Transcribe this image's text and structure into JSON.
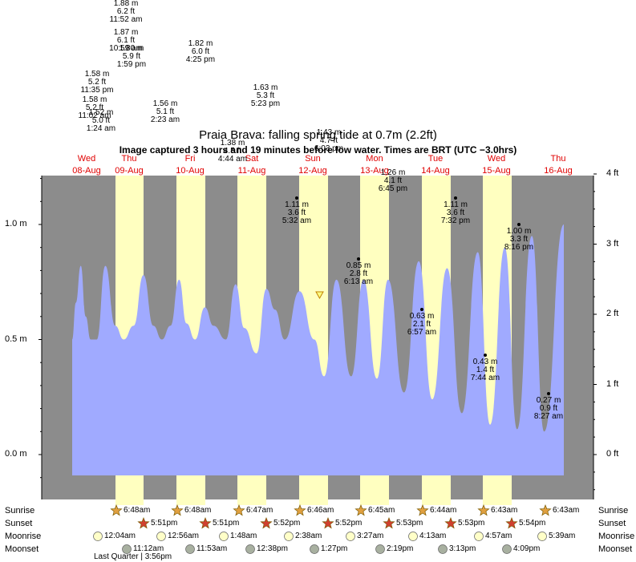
{
  "title": "Praia Brava: falling  spring tide at 0.7m (2.2ft)",
  "subtitle": "Image captured 3 hours and 19 minutes before low water. Times are BRT (UTC −3.0hrs)",
  "days": [
    {
      "dow": "Wed",
      "date": "08-Aug"
    },
    {
      "dow": "Thu",
      "date": "09-Aug"
    },
    {
      "dow": "Fri",
      "date": "10-Aug"
    },
    {
      "dow": "Sat",
      "date": "11-Aug"
    },
    {
      "dow": "Sun",
      "date": "12-Aug"
    },
    {
      "dow": "Mon",
      "date": "13-Aug"
    },
    {
      "dow": "Tue",
      "date": "14-Aug"
    },
    {
      "dow": "Wed",
      "date": "15-Aug"
    },
    {
      "dow": "Thu",
      "date": "16-Aug"
    }
  ],
  "left_ticks": [
    "1.0 m",
    "0.5 m",
    "0.0 m"
  ],
  "right_ticks": [
    "4 ft",
    "3 ft",
    "2 ft",
    "1 ft",
    "0 ft"
  ],
  "row_labels": [
    "Sunrise",
    "Sunset",
    "Moonrise",
    "Moonset"
  ],
  "sunrise": [
    "6:48am",
    "6:48am",
    "6:47am",
    "6:46am",
    "6:45am",
    "6:44am",
    "6:43am",
    "6:43am"
  ],
  "sunset": [
    "5:51pm",
    "5:51pm",
    "5:52pm",
    "5:52pm",
    "5:53pm",
    "5:53pm",
    "5:54pm"
  ],
  "moonrise": [
    "12:04am",
    "12:56am",
    "1:48am",
    "2:38am",
    "3:27am",
    "4:13am",
    "4:57am",
    "5:39am"
  ],
  "moonset": [
    "11:12am",
    "11:53am",
    "12:38pm",
    "1:27pm",
    "2:19pm",
    "3:13pm",
    "4:09pm"
  ],
  "moon_phase": "Last Quarter | 3:56pm",
  "colors": {
    "water": "#a0aaff",
    "night": "#8c8c8c",
    "day": "#ffffc0",
    "day_label": "#e00000"
  },
  "chart_data": {
    "type": "area",
    "title": "Praia Brava: falling  spring tide at 0.7m (2.2ft)",
    "y_unit_left": "m",
    "y_unit_right": "ft",
    "ylim_m": [
      -0.1,
      1.22
    ],
    "grid": false,
    "x_range": [
      "08-Aug",
      "16-Aug"
    ],
    "annotations": [
      {
        "m": "1.88 m",
        "ft": "6.2 ft",
        "time": "11:52 am"
      },
      {
        "m": "1.87 m",
        "ft": "6.1 ft",
        "time": "10:59 am"
      },
      {
        "m": "1.80 m",
        "ft": "5.9 ft",
        "time": "1:59 pm"
      },
      {
        "m": "1.82 m",
        "ft": "6.0 ft",
        "time": "4:25 pm"
      },
      {
        "m": "1.58 m",
        "ft": "5.2 ft",
        "time": "11:35 pm"
      },
      {
        "m": "1.58 m",
        "ft": "5.2 ft",
        "time": "11:02 am"
      },
      {
        "m": "1.52 m",
        "ft": "5.0 ft",
        "time": "1:24 am"
      },
      {
        "m": "1.56 m",
        "ft": "5.1 ft",
        "time": "2:23 am"
      },
      {
        "m": "1.63 m",
        "ft": "5.3 ft",
        "time": "5:23 pm"
      },
      {
        "m": "1.43 m",
        "ft": "4.7 ft",
        "time": "6:03 pm"
      },
      {
        "m": "1.38 m",
        "ft": "4.5 ft",
        "time": "4:44 am"
      },
      {
        "m": "1.26 m",
        "ft": "4.1 ft",
        "time": "6:45 pm"
      },
      {
        "m": "1.11 m",
        "ft": "3.6 ft",
        "time": "5:32 am"
      },
      {
        "m": "1.11 m",
        "ft": "3.6 ft",
        "time": "7:32 pm"
      },
      {
        "m": "1.00 m",
        "ft": "3.3 ft",
        "time": "8:16 pm"
      },
      {
        "m": "0.85 m",
        "ft": "2.8 ft",
        "time": "6:13 am"
      },
      {
        "m": "0.63 m",
        "ft": "2.1 ft",
        "time": "6:57 am"
      },
      {
        "m": "0.43 m",
        "ft": "1.4 ft",
        "time": "7:44 am"
      },
      {
        "m": "0.27 m",
        "ft": "0.9 ft",
        "time": "8:27 am"
      }
    ],
    "series_points_m": [
      [
        0.0,
        0.5
      ],
      [
        0.03,
        0.66
      ],
      [
        0.07,
        0.82
      ],
      [
        0.11,
        0.6
      ],
      [
        0.15,
        0.5
      ],
      [
        0.2,
        0.5
      ],
      [
        0.27,
        0.82
      ],
      [
        0.35,
        0.56
      ],
      [
        0.42,
        0.5
      ],
      [
        0.5,
        0.56
      ],
      [
        0.58,
        0.78
      ],
      [
        0.66,
        0.56
      ],
      [
        0.73,
        0.5
      ],
      [
        0.8,
        0.56
      ],
      [
        0.87,
        0.76
      ],
      [
        0.93,
        0.57
      ],
      [
        1.0,
        0.5
      ],
      [
        1.0,
        0.5
      ],
      [
        1.08,
        0.64
      ],
      [
        1.15,
        0.56
      ],
      [
        1.25,
        0.5
      ],
      [
        1.33,
        0.74
      ],
      [
        1.4,
        0.55
      ],
      [
        1.5,
        0.44
      ],
      [
        1.58,
        0.72
      ],
      [
        1.65,
        0.63
      ],
      [
        1.73,
        0.5
      ],
      [
        1.85,
        0.71
      ],
      [
        1.97,
        0.5
      ],
      [
        2.05,
        0.34
      ],
      [
        2.15,
        0.76
      ],
      [
        2.27,
        0.34
      ],
      [
        2.37,
        0.76
      ],
      [
        2.48,
        0.33
      ],
      [
        2.57,
        0.76
      ],
      [
        2.7,
        0.27
      ],
      [
        2.82,
        0.84
      ],
      [
        2.93,
        0.24
      ],
      [
        3.05,
        0.81
      ],
      [
        3.17,
        0.18
      ],
      [
        3.3,
        0.88
      ],
      [
        3.4,
        0.13
      ],
      [
        3.52,
        0.9
      ],
      [
        3.62,
        0.11
      ],
      [
        3.74,
        0.95
      ],
      [
        3.84,
        0.1
      ],
      [
        4.0,
        1.0
      ]
    ]
  }
}
